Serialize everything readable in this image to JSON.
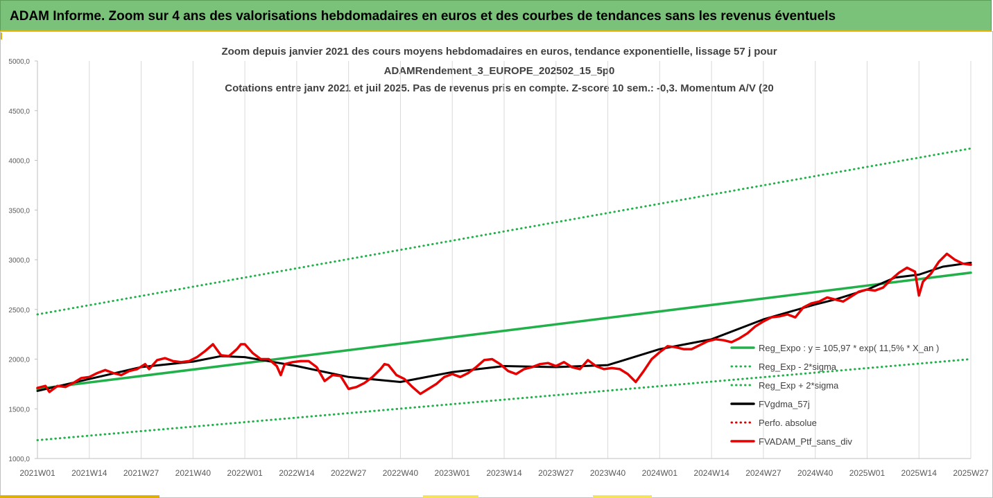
{
  "header": {
    "title": "ADAM Informe. Zoom sur 4 ans des valorisations hebdomadaires en euros et des courbes de tendances sans les revenus éventuels"
  },
  "chart_data": {
    "type": "line",
    "title_lines": [
      "Zoom depuis janvier 2021 des cours moyens hebdomadaires  en euros, tendance exponentielle, lissage 57 j pour",
      "ADAMRendement_3_EUROPE_202502_15_5p0",
      "Cotations entre janv 2021 et juil 2025. Pas de revenus pris en compte. Z-score 10 sem.: -0,3. Momentum A/V (20"
    ],
    "ylim": [
      1000,
      5000
    ],
    "y_ticks": [
      "1000,0",
      "1500,0",
      "2000,0",
      "2500,0",
      "3000,0",
      "3500,0",
      "4000,0",
      "4500,0",
      "5000,0"
    ],
    "x_tick_labels": [
      "2021W01",
      "2021W14",
      "2021W27",
      "2021W40",
      "2022W01",
      "2022W14",
      "2022W27",
      "2022W40",
      "2023W01",
      "2023W14",
      "2023W27",
      "2023W40",
      "2024W01",
      "2024W14",
      "2024W27",
      "2024W40",
      "2025W01",
      "2025W14",
      "2025W27"
    ],
    "x_weeks": [
      0,
      234
    ],
    "grid": "vertical",
    "legend_position": "right",
    "series": [
      {
        "name": "Reg_Expo : y = 105,97 * exp( 11,5% *  X_an )",
        "color": "#22b04b",
        "style": "solid",
        "x": [
          0,
          234
        ],
        "y": [
          1700,
          2870
        ]
      },
      {
        "name": "Reg_Exp - 2*sigma",
        "color": "#22b04b",
        "style": "dotted",
        "x": [
          0,
          234
        ],
        "y": [
          1185,
          2000
        ]
      },
      {
        "name": "Reg_Exp + 2*sigma",
        "color": "#22b04b",
        "style": "dotted",
        "x": [
          0,
          234
        ],
        "y": [
          2450,
          4120
        ]
      },
      {
        "name": "FVgdma_57j",
        "color": "#000000",
        "style": "solid",
        "x": [
          0,
          13,
          26,
          39,
          46,
          52,
          65,
          78,
          91,
          104,
          117,
          130,
          143,
          156,
          169,
          182,
          195,
          200,
          208,
          215,
          221,
          227,
          234
        ],
        "y": [
          1680,
          1800,
          1920,
          1975,
          2030,
          2020,
          1930,
          1820,
          1770,
          1870,
          1930,
          1920,
          1940,
          2100,
          2200,
          2400,
          2550,
          2600,
          2700,
          2820,
          2850,
          2930,
          2970
        ]
      },
      {
        "name": "Perfo. absolue",
        "color": "#e00000",
        "style": "dotted",
        "x": [],
        "y": []
      },
      {
        "name": "FVADAM_Ptf_sans_div",
        "color": "#e60000",
        "style": "solid",
        "x": [
          0,
          2,
          3,
          5,
          7,
          9,
          11,
          13,
          15,
          17,
          19,
          21,
          23,
          25,
          27,
          28,
          30,
          32,
          34,
          36,
          38,
          40,
          42,
          44,
          46,
          48,
          50,
          51,
          52,
          54,
          56,
          58,
          60,
          61,
          62,
          64,
          66,
          68,
          70,
          72,
          74,
          76,
          78,
          80,
          82,
          84,
          86,
          87,
          88,
          90,
          92,
          94,
          96,
          98,
          100,
          102,
          104,
          106,
          108,
          110,
          112,
          114,
          116,
          118,
          120,
          122,
          124,
          126,
          128,
          130,
          132,
          134,
          136,
          138,
          140,
          142,
          144,
          146,
          148,
          150,
          152,
          154,
          156,
          158,
          160,
          162,
          164,
          166,
          168,
          170,
          172,
          174,
          176,
          178,
          180,
          182,
          184,
          186,
          188,
          190,
          192,
          194,
          196,
          198,
          200,
          202,
          204,
          206,
          208,
          210,
          212,
          214,
          216,
          218,
          220,
          221,
          222,
          224,
          226,
          228,
          230,
          232,
          234
        ],
        "y": [
          1710,
          1730,
          1670,
          1730,
          1720,
          1760,
          1810,
          1820,
          1860,
          1890,
          1860,
          1840,
          1880,
          1900,
          1950,
          1900,
          1990,
          2010,
          1980,
          1970,
          1980,
          2020,
          2080,
          2150,
          2040,
          2030,
          2100,
          2150,
          2150,
          2060,
          2000,
          2000,
          1930,
          1840,
          1950,
          1970,
          1980,
          1980,
          1920,
          1780,
          1840,
          1830,
          1700,
          1720,
          1760,
          1820,
          1900,
          1950,
          1940,
          1840,
          1800,
          1720,
          1650,
          1700,
          1750,
          1820,
          1850,
          1820,
          1860,
          1920,
          1990,
          2000,
          1950,
          1880,
          1850,
          1900,
          1920,
          1950,
          1960,
          1930,
          1970,
          1920,
          1900,
          1990,
          1930,
          1900,
          1910,
          1900,
          1850,
          1770,
          1880,
          2000,
          2070,
          2130,
          2120,
          2100,
          2100,
          2140,
          2180,
          2200,
          2190,
          2170,
          2210,
          2260,
          2330,
          2380,
          2420,
          2430,
          2450,
          2420,
          2520,
          2560,
          2580,
          2620,
          2600,
          2580,
          2630,
          2680,
          2700,
          2690,
          2720,
          2800,
          2870,
          2920,
          2880,
          2640,
          2780,
          2860,
          2980,
          3060,
          3000,
          2960,
          2950
        ]
      }
    ]
  }
}
